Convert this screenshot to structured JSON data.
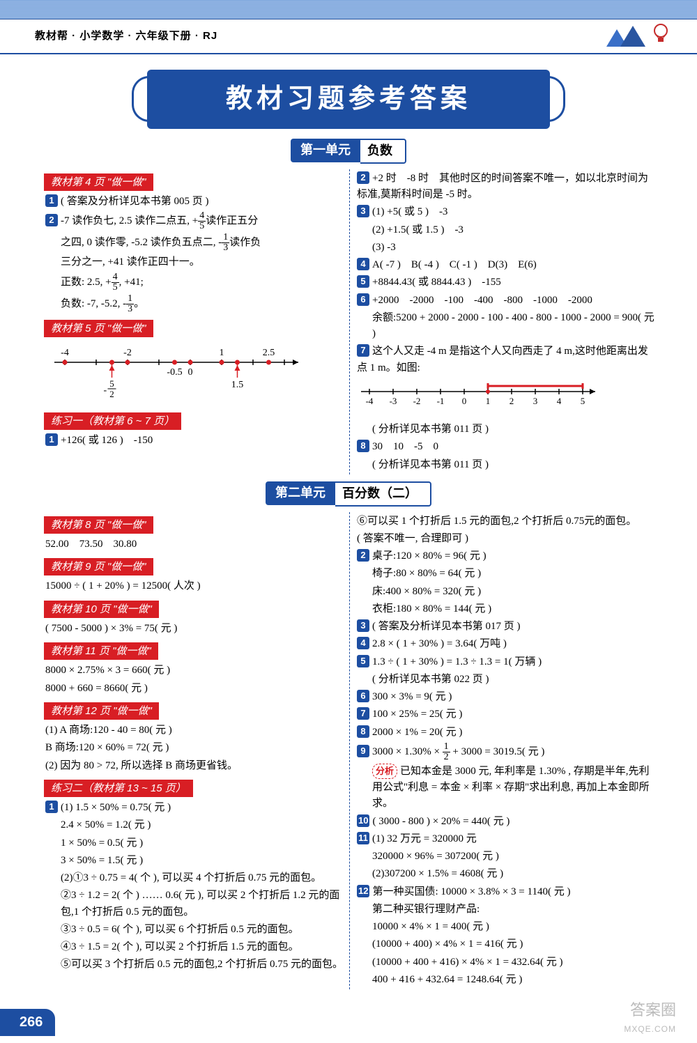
{
  "header": {
    "book_title": "教材帮 · 小学数学 · 六年级下册 · RJ",
    "main_title": "教材习题参考答案"
  },
  "colors": {
    "primary_blue": "#1d4ea1",
    "tag_red": "#d81e24",
    "text": "#000000",
    "bg": "#ffffff",
    "strip_light": "#a8c2e8",
    "strip_dark": "#6f9ed9"
  },
  "unit1": {
    "badge": "第一单元",
    "name": "负数",
    "left": {
      "tag1": "教材第 4 页 \"做一做\"",
      "a1": "( 答案及分析详见本书第 005 页 )",
      "a2_l1": "-7 读作负七, 2.5 读作二点五, +",
      "a2_frac1_n": "4",
      "a2_frac1_d": "5",
      "a2_l1b": "读作正五分",
      "a2_l2": "之四, 0 读作零, -5.2 读作负五点二, -",
      "a2_frac2_n": "1",
      "a2_frac2_d": "3",
      "a2_l2b": "读作负",
      "a2_l3": "三分之一, +41 读作正四十一。",
      "a2_pos_pre": "正数: 2.5, +",
      "a2_pos_fn": "4",
      "a2_pos_fd": "5",
      "a2_pos_post": ", +41;",
      "a2_neg_pre": "负数: -7, -5.2, -",
      "a2_neg_fn": "1",
      "a2_neg_fd": "3",
      "a2_neg_post": "。",
      "tag2": "教材第 5 页 \"做一做\"",
      "numberline": {
        "ticks": [
          -4,
          -3,
          -2,
          -1,
          0,
          1,
          2,
          3
        ],
        "labels_top": [
          "-4",
          "-2",
          "1",
          "2.5"
        ],
        "labels_top_x": [
          -4,
          -2,
          1,
          2.5
        ],
        "labels_bottom": [
          "-5/2",
          "-0.5",
          "0",
          "1.5"
        ],
        "labels_bottom_x": [
          -2.5,
          -0.5,
          0,
          1.5
        ],
        "dots_x": [
          -4,
          -2.5,
          -2,
          -0.5,
          0,
          1,
          1.5,
          2.5
        ],
        "line_color": "#000000",
        "dot_color": "#d81e24",
        "arrow_color": "#d81e24"
      },
      "tag3": "练习一（教材第 6 ~ 7 页）",
      "ex1": "+126( 或 126 )　-150"
    },
    "right": {
      "r2": "+2 时　-8 时　其他时区的时间答案不唯一，如以北京时间为标准,莫斯科时间是 -5 时。",
      "r3_1": "(1) +5( 或 5 )　-3",
      "r3_2": "(2) +1.5( 或 1.5 )　-3",
      "r3_3": "(3) -3",
      "r4": "A( -7 )　B( -4 )　C( -1 )　D(3)　E(6)",
      "r5": "+8844.43( 或 8844.43 )　-155",
      "r6_1": "+2000　-2000　-100　-400　-800　-1000　-2000",
      "r6_2": "余额:5200 + 2000 - 2000 - 100 - 400 - 800 - 1000 - 2000 = 900( 元 )",
      "r7_1": "这个人又走 -4 m 是指这个人又向西走了 4 m,这时他距离出发点 1 m。如图:",
      "numberline2": {
        "ticks": [
          -4,
          -3,
          -2,
          -1,
          0,
          1,
          2,
          3,
          4,
          5
        ],
        "highlight_from": 1,
        "highlight_to": 5,
        "line_color": "#000000",
        "highlight_color": "#d81e24"
      },
      "r7_2": "( 分析详见本书第 011 页 )",
      "r8_1": "30　10　-5　0",
      "r8_2": "( 分析详见本书第 011 页 )"
    }
  },
  "unit2": {
    "badge": "第二单元",
    "name": "百分数（二）",
    "left": {
      "tag1": "教材第 8 页 \"做一做\"",
      "a8": "52.00　73.50　30.80",
      "tag2": "教材第 9 页 \"做一做\"",
      "a9": "15000 ÷ ( 1 + 20% ) = 12500( 人次 )",
      "tag3": "教材第 10 页 \"做一做\"",
      "a10": "( 7500 - 5000 ) × 3% = 75( 元 )",
      "tag4": "教材第 11 页 \"做一做\"",
      "a11_1": "8000 × 2.75% × 3 = 660( 元 )",
      "a11_2": "8000 + 660 = 8660( 元 )",
      "tag5": "教材第 12 页 \"做一做\"",
      "a12_1": "(1) A 商场:120 - 40 = 80( 元 )",
      "a12_2": "B 商场:120 × 60% = 72( 元 )",
      "a12_3": "(2) 因为 80 > 72, 所以选择 B 商场更省钱。",
      "tag6": "练习二（教材第 13 ~ 15 页）",
      "e1_1": "(1) 1.5 × 50% = 0.75( 元 )",
      "e1_2": "2.4 × 50% = 1.2( 元 )",
      "e1_3": "1 × 50% = 0.5( 元 )",
      "e1_4": "3 × 50% = 1.5( 元 )",
      "e1_5": "(2)①3 ÷ 0.75 = 4( 个 ), 可以买 4 个打折后 0.75 元的面包。",
      "e1_6": "②3 ÷ 1.2 = 2( 个 ) …… 0.6( 元 ), 可以买 2 个打折后 1.2 元的面包,1 个打折后 0.5 元的面包。",
      "e1_7": "③3 ÷ 0.5 = 6( 个 ), 可以买 6 个打折后 0.5 元的面包。",
      "e1_8": "④3 ÷ 1.5 = 2( 个 ), 可以买 2 个打折后 1.5 元的面包。",
      "e1_9": "⑤可以买 3 个打折后 0.5 元的面包,2 个打折后 0.75 元的面包。"
    },
    "right": {
      "r_cont1": "⑥可以买 1 个打折后 1.5 元的面包,2 个打折后 0.75元的面包。",
      "r_cont2": "( 答案不唯一, 合理即可 )",
      "r2_1": "桌子:120 × 80% = 96( 元 )",
      "r2_2": "椅子:80 × 80% = 64( 元 )",
      "r2_3": "床:400 × 80% = 320( 元 )",
      "r2_4": "衣柜:180 × 80% = 144( 元 )",
      "r3": "( 答案及分析详见本书第 017 页 )",
      "r4": "2.8 × ( 1 + 30% ) = 3.64( 万吨 )",
      "r5_1": "1.3 ÷ ( 1 + 30% ) = 1.3 ÷ 1.3 = 1( 万辆 )",
      "r5_2": "( 分析详见本书第 022 页 )",
      "r6": "300 × 3% = 9( 元 )",
      "r7": "100 × 25% = 25( 元 )",
      "r8": "2000 × 1% = 20( 元 )",
      "r9_pre": "3000 × 1.30% × ",
      "r9_fn": "1",
      "r9_fd": "2",
      "r9_post": " + 3000 = 3019.5( 元 )",
      "analysis_mark": "分析",
      "r9_an": "已知本金是 3000 元, 年利率是 1.30% , 存期是半年,先利用公式\"利息 = 本金 × 利率 × 存期\"求出利息, 再加上本金即所求。",
      "r10": "( 3000 - 800 ) × 20% = 440( 元 )",
      "r11_1": "(1) 32 万元 = 320000 元",
      "r11_2": "320000 × 96% = 307200( 元 )",
      "r11_3": "(2)307200 × 1.5% = 4608( 元 )",
      "r12_1": "第一种买国债: 10000 × 3.8% × 3 = 1140( 元 )",
      "r12_2": "第二种买银行理财产品:",
      "r12_3": "10000 × 4% × 1 = 400( 元 )",
      "r12_4": "(10000 + 400) × 4% × 1 = 416( 元 )",
      "r12_5": "(10000 + 400 + 416) × 4% × 1 = 432.64( 元 )",
      "r12_6": "400 + 416 + 432.64 = 1248.64( 元 )"
    }
  },
  "footer": {
    "page": "266",
    "wm1": "答案圈",
    "wm2": "MXQE.COM"
  }
}
